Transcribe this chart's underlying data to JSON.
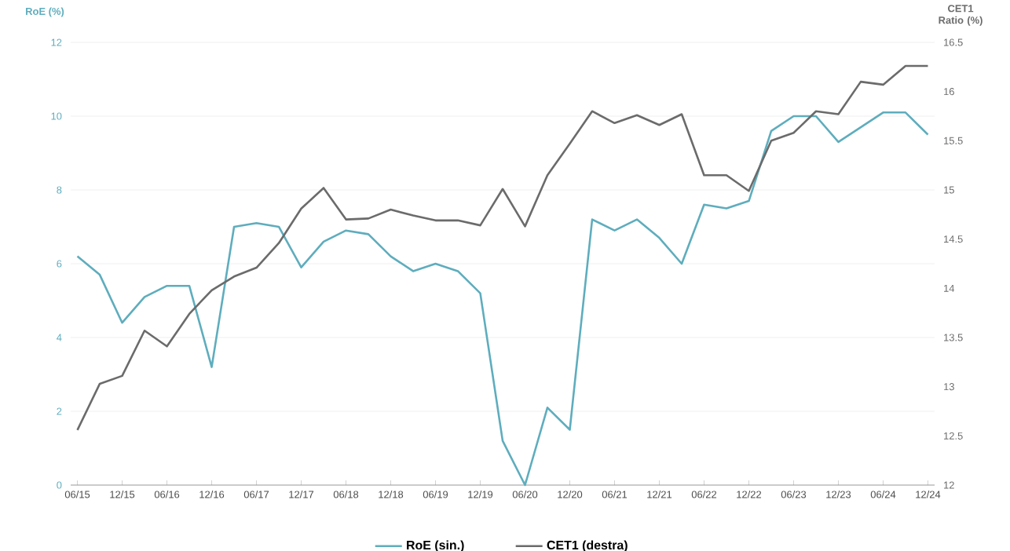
{
  "chart_data": {
    "type": "line",
    "categories": [
      "06/15",
      null,
      "12/15",
      null,
      "06/16",
      null,
      "12/16",
      null,
      "06/17",
      null,
      "12/17",
      null,
      "06/18",
      null,
      "12/18",
      null,
      "06/19",
      null,
      "12/19",
      null,
      "06/20",
      null,
      "12/20",
      null,
      "06/21",
      null,
      "12/21",
      null,
      "06/22",
      null,
      "12/22",
      null,
      "06/23",
      null,
      "12/23",
      null,
      "06/24",
      null,
      "12/24"
    ],
    "series": [
      {
        "name": "RoE (sin.)",
        "color": "#5eadbd",
        "values": [
          6.2,
          5.7,
          4.4,
          5.1,
          5.4,
          5.4,
          3.2,
          7.0,
          7.1,
          7.0,
          5.9,
          6.6,
          6.9,
          6.8,
          6.2,
          5.8,
          6.0,
          5.8,
          5.2,
          1.2,
          0.0,
          2.1,
          1.5,
          7.2,
          6.9,
          7.2,
          6.7,
          6.0,
          7.6,
          7.5,
          7.7,
          9.6,
          10.0,
          10.0,
          9.3,
          9.7,
          10.1,
          10.1,
          9.5
        ]
      },
      {
        "name": "CET1 (destra)",
        "color": "#6b6b6b",
        "axis": "y2",
        "values": [
          12.56,
          13.03,
          13.11,
          13.57,
          13.41,
          13.74,
          13.98,
          14.12,
          14.21,
          14.46,
          14.81,
          15.02,
          14.7,
          14.71,
          14.8,
          14.74,
          14.69,
          14.69,
          14.64,
          15.01,
          14.63,
          15.15,
          15.47,
          15.8,
          15.68,
          15.76,
          15.66,
          15.77,
          15.15,
          15.15,
          14.99,
          15.5,
          15.58,
          15.8,
          15.77,
          16.1,
          16.07,
          16.26,
          16.26
        ]
      }
    ],
    "ylabel": "RoE (%)",
    "y2label": "CET1 Ratio (%)",
    "ylim": [
      0,
      12
    ],
    "yticks": [
      0,
      2,
      4,
      6,
      8,
      10,
      12
    ],
    "y2lim": [
      12,
      16.5
    ],
    "y2ticks": [
      12,
      12.5,
      13,
      13.5,
      14,
      14.5,
      15,
      15.5,
      16,
      16.5
    ],
    "grid": "y",
    "legend": "bottom",
    "marker": "none",
    "line_style": "solid"
  }
}
